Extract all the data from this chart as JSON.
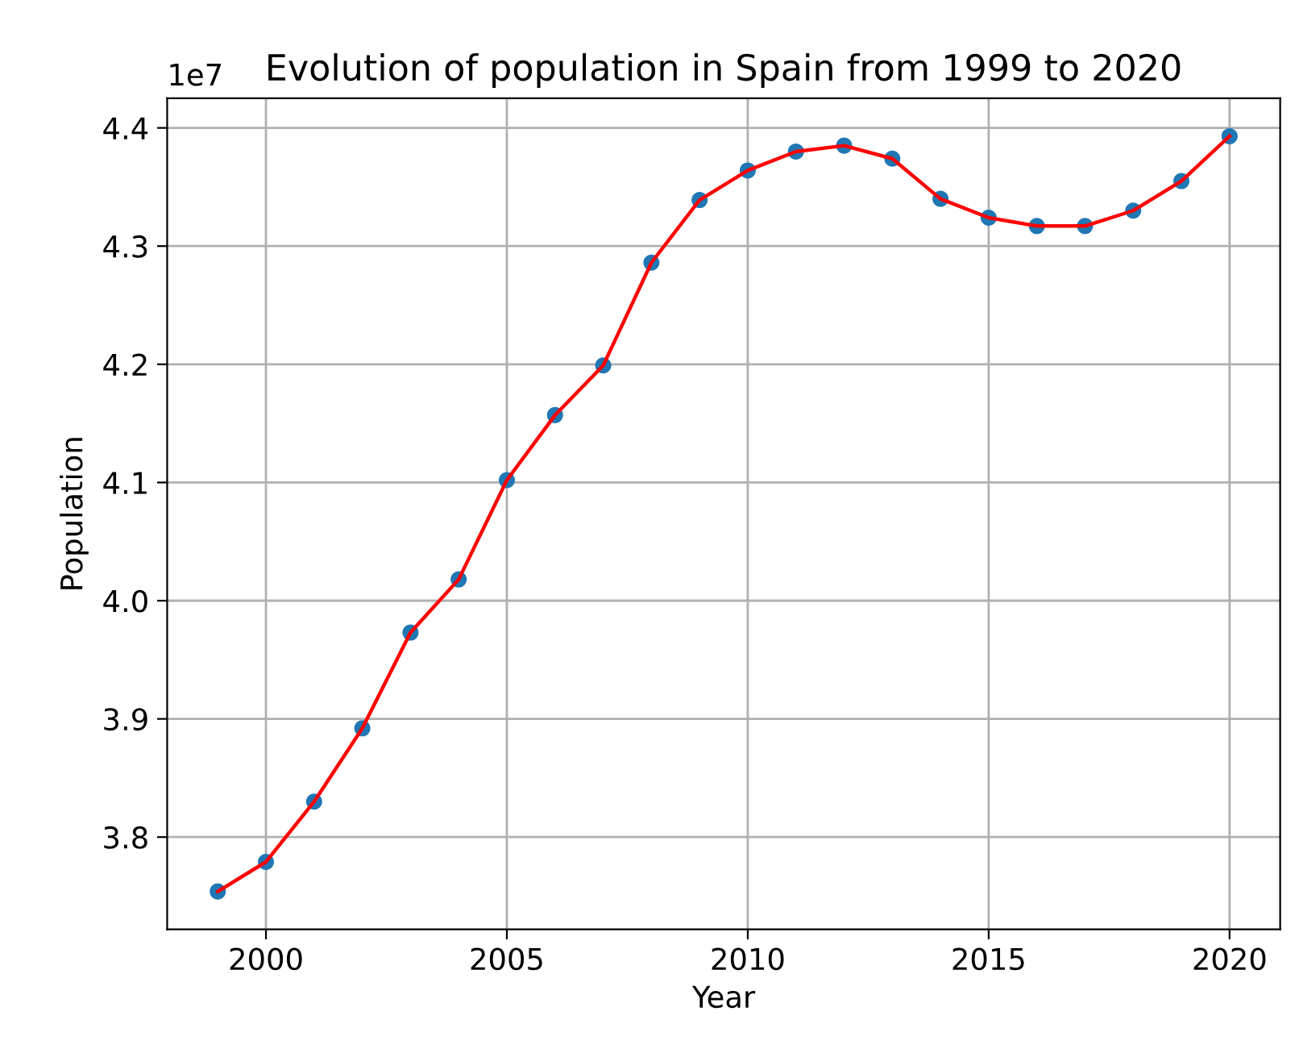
{
  "chart_data": {
    "type": "line",
    "title": "Evolution of population in Spain from 1999 to 2020",
    "xlabel": "Year",
    "ylabel": "Population",
    "x": [
      1999,
      2000,
      2001,
      2002,
      2003,
      2004,
      2005,
      2006,
      2007,
      2008,
      2009,
      2010,
      2011,
      2012,
      2013,
      2014,
      2015,
      2016,
      2017,
      2018,
      2019,
      2020
    ],
    "series": [
      {
        "type": "scatter",
        "color": "#1f77b4",
        "marker": "circle",
        "values": [
          3.754,
          3.779,
          3.83,
          3.892,
          3.973,
          4.018,
          4.102,
          4.157,
          4.199,
          4.286,
          4.339,
          4.364,
          4.38,
          4.385,
          4.374,
          4.34,
          4.324,
          4.317,
          4.317,
          4.33,
          4.355,
          4.393
        ]
      },
      {
        "color": "#ff0000",
        "line_style": "solid",
        "values": [
          3.754,
          3.779,
          3.83,
          3.892,
          3.973,
          4.018,
          4.102,
          4.157,
          4.199,
          4.286,
          4.339,
          4.364,
          4.38,
          4.385,
          4.374,
          4.34,
          4.324,
          4.317,
          4.317,
          4.33,
          4.355,
          4.393
        ]
      }
    ],
    "xlim": [
      1997.95,
      2021.05
    ],
    "xticks": [
      2000,
      2005,
      2010,
      2015,
      2020
    ],
    "ylim": [
      3.722,
      4.425
    ],
    "yticks": [
      3.8,
      3.9,
      {
        "value": 4,
        "label": "4.0"
      },
      4.1,
      4.2,
      4.3,
      4.4
    ],
    "grid": true,
    "annotations": [
      "1e7"
    ]
  }
}
